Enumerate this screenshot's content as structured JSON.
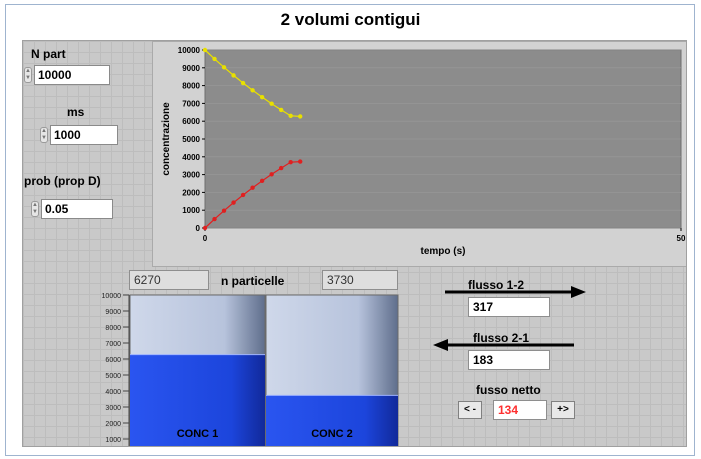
{
  "title": "2 volumi contigui",
  "controls": {
    "n_part": {
      "label": "N part",
      "value": "10000"
    },
    "ms": {
      "label": "ms",
      "value": "1000"
    },
    "prob": {
      "label": "prob (prop D)",
      "value": "0.05"
    }
  },
  "chart_data": {
    "type": "scatter",
    "xlabel": "tempo (s)",
    "ylabel": "concentrazione",
    "xlim": [
      0,
      50
    ],
    "ylim": [
      0,
      10000
    ],
    "x_ticks": [
      0,
      50
    ],
    "y_ticks": [
      0,
      1000,
      2000,
      3000,
      4000,
      5000,
      6000,
      7000,
      8000,
      9000,
      10000
    ],
    "grid": true,
    "series": [
      {
        "color": "#e8e000",
        "x": [
          0,
          1,
          2,
          3,
          4,
          5,
          6,
          7,
          8,
          9,
          10
        ],
        "y": [
          10000,
          9500,
          9025,
          8574,
          8145,
          7738,
          7351,
          6983,
          6634,
          6302,
          6270
        ]
      },
      {
        "color": "#e02020",
        "x": [
          0,
          1,
          2,
          3,
          4,
          5,
          6,
          7,
          8,
          9,
          10
        ],
        "y": [
          0,
          500,
          975,
          1426,
          1855,
          2262,
          2649,
          3017,
          3366,
          3698,
          3730
        ]
      }
    ]
  },
  "tanks": {
    "left_value": "6270",
    "right_value": "3730",
    "center_label": "n particelle",
    "scale_ticks": [
      "10000",
      "9000",
      "8000",
      "7000",
      "6000",
      "5000",
      "4000",
      "3000",
      "2000",
      "1000"
    ],
    "scale_max": 10000,
    "left_level": 6270,
    "right_level": 3730,
    "left_label": "CONC  1",
    "right_label": "CONC 2"
  },
  "flux": {
    "f12_label": "flusso 1-2",
    "f12_value": "317",
    "f21_label": "flusso 2-1",
    "f21_value": "183",
    "net_label": "fusso netto",
    "net_value": "134",
    "dec_button": "< -",
    "inc_button": "+>"
  },
  "colors": {
    "panel": "#c9c9c9",
    "tank_fill": "#1f4de8",
    "tank_empty": "#c8d3e8",
    "plot_bg": "#8c8c8c"
  }
}
